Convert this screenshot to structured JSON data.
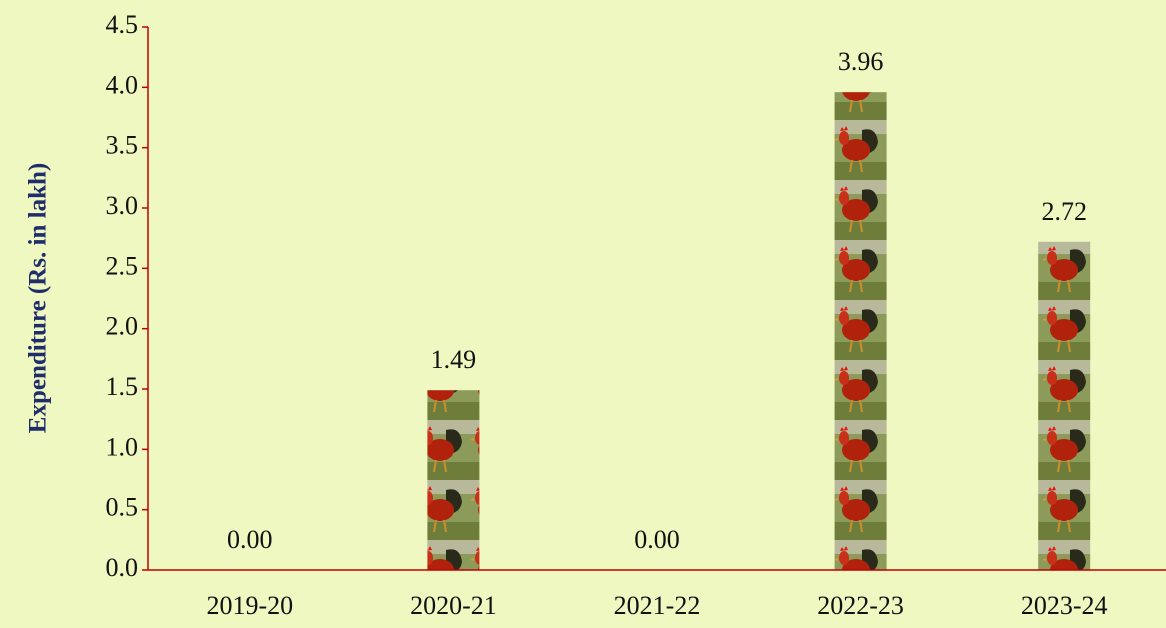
{
  "chart_data": {
    "type": "bar",
    "y_label": "Expenditure (Rs. in lakh)",
    "categories": [
      "2019-20",
      "2020-21",
      "2021-22",
      "2022-23",
      "2023-24"
    ],
    "values": [
      0,
      1.49,
      0,
      3.96,
      2.72
    ],
    "value_labels": [
      "0.00",
      "1.49",
      "0.00",
      "3.96",
      "2.72"
    ],
    "ylim": [
      0,
      4.5
    ],
    "yticks": [
      {
        "value": 0,
        "label": "0.0"
      },
      0.5,
      {
        "value": 1,
        "label": "1.0"
      },
      1.5,
      {
        "value": 2,
        "label": "2.0"
      },
      2.5,
      {
        "value": 3,
        "label": "3.0"
      },
      3.5,
      {
        "value": 4,
        "label": "4.0"
      },
      4.5
    ],
    "axis_color": "#c00000"
  }
}
